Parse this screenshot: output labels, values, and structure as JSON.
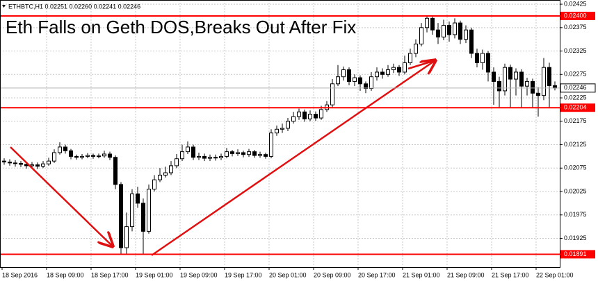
{
  "chart_data": {
    "type": "candlestick",
    "info": "ETHBTC,H1  0.02251 0.02260 0.02241 0.02246",
    "title": "Eth Falls on Geth DOS,Breaks Out After Fix",
    "categories": [
      "18 Sep 2016",
      null,
      null,
      null,
      null,
      null,
      null,
      null,
      "18 Sep 09:00",
      null,
      null,
      null,
      null,
      null,
      null,
      null,
      "18 Sep 17:00",
      null,
      null,
      null,
      null,
      null,
      null,
      null,
      "19 Sep 01:00",
      null,
      null,
      null,
      null,
      null,
      null,
      null,
      "19 Sep 09:00",
      null,
      null,
      null,
      null,
      null,
      null,
      null,
      "19 Sep 17:00",
      null,
      null,
      null,
      null,
      null,
      null,
      null,
      "20 Sep 01:00",
      null,
      null,
      null,
      null,
      null,
      null,
      null,
      "20 Sep 09:00",
      null,
      null,
      null,
      null,
      null,
      null,
      null,
      "20 Sep 17:00",
      null,
      null,
      null,
      null,
      null,
      null,
      null,
      "21 Sep 01:00",
      null,
      null,
      null,
      null,
      null,
      null,
      null,
      "21 Sep 09:00",
      null,
      null,
      null,
      null,
      null,
      null,
      null,
      "21 Sep 17:00",
      null,
      null,
      null,
      null,
      null,
      null,
      null,
      "22 Sep 01:00",
      null,
      null,
      null
    ],
    "open": [
      0.0209,
      0.02088,
      0.02086,
      0.02085,
      0.02083,
      0.0208,
      0.02082,
      0.02079,
      0.02084,
      0.0209,
      0.02108,
      0.0212,
      0.02112,
      0.021,
      0.02098,
      0.021,
      0.02102,
      0.021,
      0.02101,
      0.02105,
      0.02098,
      0.0204,
      0.01905,
      0.0195,
      0.0202,
      0.02,
      0.0194,
      0.0203,
      0.0205,
      0.0206,
      0.02065,
      0.0208,
      0.02095,
      0.0211,
      0.0212,
      0.02098,
      0.021,
      0.02096,
      0.02098,
      0.02097,
      0.021,
      0.0211,
      0.02106,
      0.02108,
      0.02104,
      0.0211,
      0.02102,
      0.02104,
      0.021,
      0.0215,
      0.02158,
      0.0216,
      0.02175,
      0.02185,
      0.02195,
      0.0218,
      0.0219,
      0.02182,
      0.022,
      0.0221,
      0.02255,
      0.0227,
      0.02285,
      0.0226,
      0.02268,
      0.02255,
      0.02245,
      0.0227,
      0.0228,
      0.02275,
      0.02285,
      0.0229,
      0.0228,
      0.023,
      0.0232,
      0.0234,
      0.02375,
      0.02395,
      0.0237,
      0.02355,
      0.0238,
      0.0236,
      0.02385,
      0.0235,
      0.0237,
      0.0232,
      0.023,
      0.0232,
      0.0228,
      0.0226,
      0.0224,
      0.0229,
      0.02265,
      0.0228,
      0.0225,
      0.0226,
      0.02235,
      0.0223,
      0.0229,
      0.02251
    ],
    "high": [
      0.02096,
      0.02094,
      0.02092,
      0.0209,
      0.02089,
      0.02088,
      0.02087,
      0.0209,
      0.02097,
      0.02115,
      0.0213,
      0.02125,
      0.02116,
      0.02104,
      0.02105,
      0.02107,
      0.02106,
      0.02106,
      0.02112,
      0.0211,
      0.02102,
      0.02045,
      0.0198,
      0.0203,
      0.02035,
      0.0201,
      0.0204,
      0.0206,
      0.02075,
      0.02078,
      0.0209,
      0.02105,
      0.02125,
      0.02132,
      0.02125,
      0.02108,
      0.02106,
      0.02104,
      0.02104,
      0.02106,
      0.02118,
      0.02114,
      0.02115,
      0.02112,
      0.02116,
      0.02114,
      0.0211,
      0.02108,
      0.02158,
      0.02166,
      0.0217,
      0.02182,
      0.02195,
      0.02202,
      0.022,
      0.02198,
      0.02196,
      0.02208,
      0.02218,
      0.02265,
      0.02295,
      0.02292,
      0.0229,
      0.02275,
      0.02273,
      0.0226,
      0.0228,
      0.0229,
      0.02288,
      0.02295,
      0.02298,
      0.02295,
      0.02315,
      0.0233,
      0.0235,
      0.02385,
      0.024,
      0.02398,
      0.02385,
      0.02392,
      0.02388,
      0.02395,
      0.0239,
      0.0238,
      0.02375,
      0.0233,
      0.02328,
      0.02325,
      0.0229,
      0.0227,
      0.02298,
      0.02296,
      0.02288,
      0.02286,
      0.02268,
      0.02266,
      0.02248,
      0.0231,
      0.023,
      0.0226
    ],
    "low": [
      0.02082,
      0.0208,
      0.02078,
      0.02077,
      0.02074,
      0.02075,
      0.02073,
      0.02075,
      0.0208,
      0.02086,
      0.02104,
      0.02106,
      0.02094,
      0.02093,
      0.02094,
      0.02096,
      0.02095,
      0.02096,
      0.02097,
      0.02092,
      0.0203,
      0.01891,
      0.01891,
      0.0194,
      0.0199,
      0.01891,
      0.01935,
      0.02025,
      0.02045,
      0.02055,
      0.0206,
      0.02075,
      0.0209,
      0.02105,
      0.02092,
      0.02092,
      0.0209,
      0.0209,
      0.02091,
      0.02092,
      0.02096,
      0.021,
      0.02101,
      0.02098,
      0.02099,
      0.02097,
      0.02097,
      0.02095,
      0.02096,
      0.02144,
      0.0215,
      0.02154,
      0.0217,
      0.02178,
      0.02174,
      0.02175,
      0.02176,
      0.02178,
      0.02195,
      0.02205,
      0.0225,
      0.02262,
      0.02252,
      0.0225,
      0.0224,
      0.02235,
      0.0224,
      0.02262,
      0.02266,
      0.0227,
      0.02278,
      0.02272,
      0.02275,
      0.02295,
      0.02312,
      0.02335,
      0.02365,
      0.0236,
      0.0234,
      0.02348,
      0.02345,
      0.02352,
      0.0234,
      0.02342,
      0.0231,
      0.0229,
      0.02285,
      0.0226,
      0.0221,
      0.02204,
      0.0223,
      0.02204,
      0.0223,
      0.02204,
      0.0223,
      0.02204,
      0.02185,
      0.0222,
      0.02205,
      0.02241
    ],
    "close": [
      0.02088,
      0.02086,
      0.02085,
      0.02083,
      0.0208,
      0.02082,
      0.02079,
      0.02084,
      0.0209,
      0.02108,
      0.0212,
      0.02112,
      0.021,
      0.02098,
      0.021,
      0.02102,
      0.021,
      0.02101,
      0.02105,
      0.02098,
      0.0204,
      0.01905,
      0.0195,
      0.0202,
      0.02,
      0.0194,
      0.0203,
      0.0205,
      0.0206,
      0.02065,
      0.0208,
      0.02095,
      0.0211,
      0.0212,
      0.02098,
      0.021,
      0.02096,
      0.02098,
      0.02097,
      0.021,
      0.0211,
      0.02106,
      0.02108,
      0.02104,
      0.0211,
      0.02102,
      0.02104,
      0.021,
      0.0215,
      0.02158,
      0.0216,
      0.02175,
      0.02185,
      0.02195,
      0.0218,
      0.0219,
      0.02182,
      0.022,
      0.0221,
      0.02255,
      0.0227,
      0.02285,
      0.0226,
      0.02268,
      0.02255,
      0.02245,
      0.0227,
      0.0228,
      0.02275,
      0.02285,
      0.0229,
      0.0228,
      0.023,
      0.0232,
      0.0234,
      0.02375,
      0.02395,
      0.0237,
      0.02355,
      0.0238,
      0.0236,
      0.02385,
      0.0235,
      0.0237,
      0.0232,
      0.023,
      0.0232,
      0.0228,
      0.0226,
      0.0224,
      0.0229,
      0.02265,
      0.0228,
      0.0225,
      0.0226,
      0.02235,
      0.0223,
      0.0229,
      0.02251,
      0.02246
    ],
    "ylim": [
      0.018635,
      0.02434
    ],
    "yticks": [
      0.02425,
      0.02375,
      0.02325,
      0.02275,
      0.02225,
      0.02175,
      0.02125,
      0.02075,
      0.02025,
      0.01975,
      0.01925
    ],
    "hlines": [
      {
        "value": 0.024,
        "label": "0.02400"
      },
      0.02204,
      0.01891
    ],
    "hline_color": "#ff0000",
    "last_price": 0.02246,
    "grid": true
  }
}
